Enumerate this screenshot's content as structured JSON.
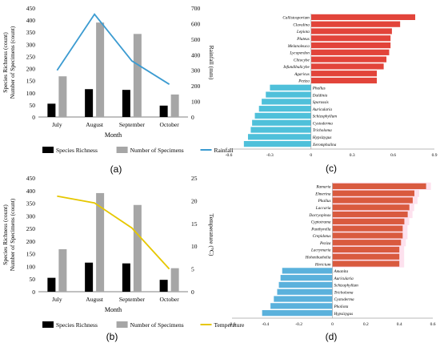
{
  "panel_labels": [
    "(a)",
    "(b)",
    "(c)",
    "(d)"
  ],
  "chart_data": [
    {
      "type": "bar",
      "panel": "(a)",
      "categories": [
        "July",
        "August",
        "September",
        "October"
      ],
      "xlabel": "Month",
      "ylabel": "Species Richness (count)\nNumber of Specimens (count)",
      "ylim": [
        0,
        450
      ],
      "yticks": [
        0,
        50,
        100,
        150,
        200,
        250,
        300,
        350,
        400,
        450
      ],
      "y2label": "Rainfall (mm)",
      "y2lim": [
        0,
        700
      ],
      "y2ticks": [
        0,
        100,
        200,
        300,
        400,
        500,
        600,
        700
      ],
      "series": [
        {
          "name": "Species Richness",
          "values": [
            55,
            115,
            112,
            47
          ],
          "color": "#000000"
        },
        {
          "name": "Number of Specimens",
          "values": [
            168,
            390,
            343,
            93
          ],
          "color": "#a6a6a6"
        },
        {
          "name": "Rainfall",
          "axis": "right",
          "kind": "line",
          "values": [
            300,
            660,
            360,
            210
          ],
          "color": "#3b9bd1"
        }
      ],
      "legend": "bottom"
    },
    {
      "type": "bar",
      "panel": "(b)",
      "categories": [
        "July",
        "August",
        "September",
        "October"
      ],
      "xlabel": "Month",
      "ylabel": "Species Richness (count)\nNumber of Specimens (count)",
      "ylim": [
        0,
        450
      ],
      "yticks": [
        0,
        50,
        100,
        150,
        200,
        250,
        300,
        350,
        400,
        450
      ],
      "y2label": "Temperature (°C)",
      "y2lim": [
        0,
        25
      ],
      "y2ticks": [
        0,
        5,
        10,
        15,
        20,
        25
      ],
      "series": [
        {
          "name": "Species Richness",
          "values": [
            55,
            115,
            112,
            47
          ],
          "color": "#000000"
        },
        {
          "name": "Number of Specimens",
          "values": [
            168,
            390,
            343,
            93
          ],
          "color": "#a6a6a6"
        },
        {
          "name": "Temperature",
          "axis": "right",
          "kind": "line",
          "values": [
            21,
            19.5,
            14,
            5
          ],
          "color": "#e6c700"
        }
      ],
      "legend": "bottom"
    },
    {
      "type": "bar",
      "orientation": "horizontal",
      "panel": "(c)",
      "categories": [
        "Callistosporium",
        "Clavulina",
        "Lepiota",
        "Pluteus",
        "Melanoleuca",
        "Lycoperdon",
        "Clitocybe",
        "Infundibulicybe",
        "Agaricus",
        "Peziza",
        "Phallus",
        "Daldinia",
        "Sparassis",
        "Auricularia",
        "Schizophyllum",
        "Cystoderma",
        "Tricholoma",
        "Hypsizygus",
        "Xeromphalina"
      ],
      "values": [
        0.76,
        0.65,
        0.59,
        0.58,
        0.58,
        0.57,
        0.55,
        0.53,
        0.48,
        0.48,
        -0.3,
        -0.33,
        -0.36,
        -0.38,
        -0.41,
        -0.43,
        -0.44,
        -0.46,
        -0.49
      ],
      "colors": {
        "positive": "#e2443a",
        "negative": "#4fc0da"
      },
      "xlim": [
        -0.6,
        0.9
      ],
      "xticks": [
        "-0.6",
        "-0.3",
        "0",
        "0.3",
        "0.6",
        "0.9"
      ]
    },
    {
      "type": "bar",
      "orientation": "horizontal",
      "panel": "(d)",
      "categories": [
        "Ramaria",
        "Elmerina",
        "Phallus",
        "Laccaria",
        "Dacryopinax",
        "Cyptotrama",
        "Panthyrella",
        "Crepidotus",
        "Peziza",
        "Lacrymaria",
        "Hohenbuehelia",
        "Hericium",
        "Amanita",
        "Auricularia",
        "Schizophyllum",
        "Tricholoma",
        "Cystoderma",
        "Pholiota",
        "Hypsizygus"
      ],
      "values": [
        0.56,
        0.49,
        0.48,
        0.46,
        0.45,
        0.43,
        0.42,
        0.42,
        0.41,
        0.4,
        0.4,
        0.4,
        -0.3,
        -0.31,
        -0.32,
        -0.33,
        -0.35,
        -0.37,
        -0.42
      ],
      "colors": {
        "positive": "#d95a3f",
        "negative": "#5ab1dc"
      },
      "xlim": [
        -0.6,
        0.6
      ],
      "xticks": [
        "-0.6",
        "-0.4",
        "-0.2",
        "0",
        "0.2",
        "0.4",
        "0.6"
      ]
    }
  ]
}
